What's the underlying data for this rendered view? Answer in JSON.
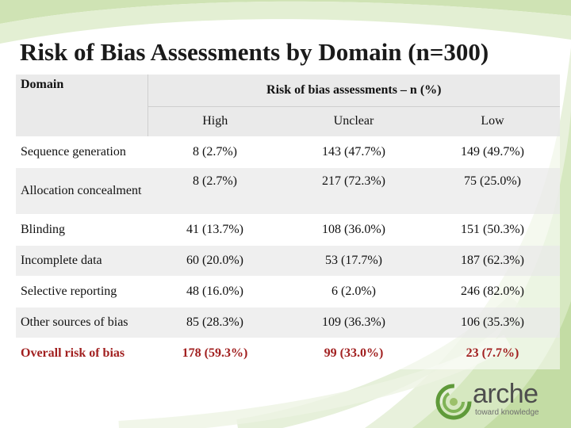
{
  "slide": {
    "title": "Risk of Bias Assessments by Domain (n=300)"
  },
  "table": {
    "domain_header": "Domain",
    "group_header": "Risk of bias assessments – n (%)",
    "columns": [
      "High",
      "Unclear",
      "Low"
    ],
    "rows": [
      {
        "domain": "Sequence generation",
        "high": "8 (2.7%)",
        "unclear": "143 (47.7%)",
        "low": "149 (49.7%)"
      },
      {
        "domain": "Allocation concealment",
        "high": "8 (2.7%)",
        "unclear": "217 (72.3%)",
        "low": "75 (25.0%)"
      },
      {
        "domain": "Blinding",
        "high": "41 (13.7%)",
        "unclear": "108 (36.0%)",
        "low": "151 (50.3%)"
      },
      {
        "domain": "Incomplete data",
        "high": "60 (20.0%)",
        "unclear": "53 (17.7%)",
        "low": "187 (62.3%)"
      },
      {
        "domain": "Selective reporting",
        "high": "48 (16.0%)",
        "unclear": "6 (2.0%)",
        "low": "246 (82.0%)"
      },
      {
        "domain": "Other sources of bias",
        "high": "85 (28.3%)",
        "unclear": "109 (36.3%)",
        "low": "106 (35.3%)"
      },
      {
        "domain": "Overall risk of bias",
        "high": "178 (59.3%)",
        "unclear": "99 (33.0%)",
        "low": "23 (7.7%)"
      }
    ]
  },
  "logo": {
    "name": "arche",
    "tagline": "toward knowledge"
  },
  "colors": {
    "overall_row": "#a11f1f",
    "swirl_green": "#9cc06a",
    "logo_green": "#5f9a3a"
  }
}
